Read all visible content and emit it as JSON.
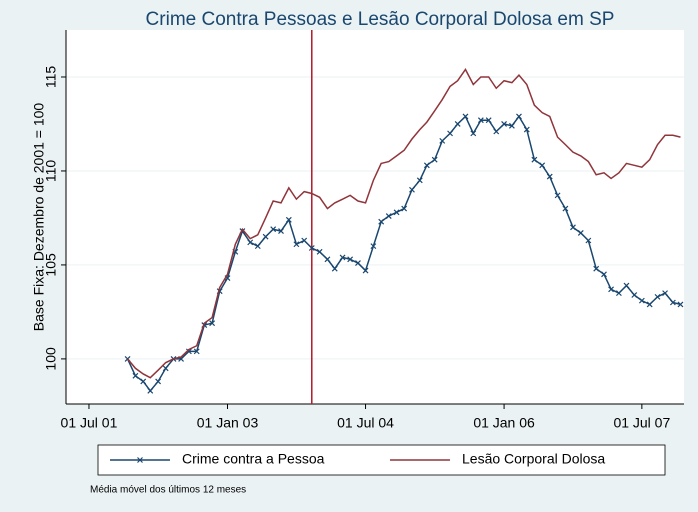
{
  "chart_data": {
    "type": "line",
    "title": "Crime Contra Pessoas e Lesão Corporal Dolosa em SP",
    "y_label": "Base Fixa: Dezembro de 2001 = 100",
    "note": "Média móvel dos últimos 12 meses",
    "x": [
      "2001-12-01",
      "2002-01-01",
      "2002-02-01",
      "2002-03-01",
      "2002-04-01",
      "2002-05-01",
      "2002-06-01",
      "2002-07-01",
      "2002-08-01",
      "2002-09-01",
      "2002-10-01",
      "2002-11-01",
      "2002-12-01",
      "2003-01-01",
      "2003-02-01",
      "2003-03-01",
      "2003-04-01",
      "2003-05-01",
      "2003-06-01",
      "2003-07-01",
      "2003-08-01",
      "2003-09-01",
      "2003-10-01",
      "2003-11-01",
      "2003-12-01",
      "2004-01-01",
      "2004-02-01",
      "2004-03-01",
      "2004-04-01",
      "2004-05-01",
      "2004-06-01",
      "2004-07-01",
      "2004-08-01",
      "2004-09-01",
      "2004-10-01",
      "2004-11-01",
      "2004-12-01",
      "2005-01-01",
      "2005-02-01",
      "2005-03-01",
      "2005-04-01",
      "2005-05-01",
      "2005-06-01",
      "2005-07-01",
      "2005-08-01",
      "2005-09-01",
      "2005-10-01",
      "2005-11-01",
      "2005-12-01",
      "2006-01-01",
      "2006-02-01",
      "2006-03-01",
      "2006-04-01",
      "2006-05-01",
      "2006-06-01",
      "2006-07-01",
      "2006-08-01",
      "2006-09-01",
      "2006-10-01",
      "2006-11-01",
      "2006-12-01",
      "2007-01-01",
      "2007-02-01",
      "2007-03-01",
      "2007-04-01",
      "2007-05-01",
      "2007-06-01",
      "2007-07-01",
      "2007-08-01",
      "2007-09-01",
      "2007-10-01",
      "2007-11-01",
      "2007-12-01"
    ],
    "series": [
      {
        "name": "Crime contra a Pessoa",
        "color": "#1a476f",
        "marker": "x",
        "values": [
          100.0,
          99.1,
          98.8,
          98.3,
          98.8,
          99.5,
          100.0,
          100.0,
          100.4,
          100.4,
          101.8,
          101.9,
          103.6,
          104.3,
          105.7,
          106.8,
          106.2,
          106.0,
          106.5,
          106.9,
          106.8,
          107.4,
          106.1,
          106.3,
          105.9,
          105.7,
          105.3,
          104.8,
          105.4,
          105.3,
          105.1,
          104.7,
          106.0,
          107.3,
          107.6,
          107.8,
          108.0,
          109.0,
          109.5,
          110.3,
          110.6,
          111.6,
          112.0,
          112.5,
          112.9,
          112.0,
          112.7,
          112.7,
          112.1,
          112.5,
          112.4,
          112.9,
          112.2,
          110.6,
          110.3,
          109.7,
          108.7,
          108.0,
          107.0,
          106.7,
          106.3,
          104.8,
          104.5,
          103.7,
          103.5,
          103.9,
          103.4,
          103.1,
          102.9,
          103.3,
          103.5,
          103.0,
          102.9
        ]
      },
      {
        "name": "Lesão Corporal Dolosa",
        "color": "#90353b",
        "values": [
          100.0,
          99.5,
          99.2,
          99.0,
          99.4,
          99.8,
          100.0,
          100.1,
          100.5,
          100.7,
          101.9,
          102.2,
          103.8,
          104.5,
          106.1,
          106.9,
          106.4,
          106.6,
          107.5,
          108.4,
          108.3,
          109.1,
          108.5,
          108.9,
          108.8,
          108.6,
          108.0,
          108.3,
          108.5,
          108.7,
          108.4,
          108.3,
          109.5,
          110.4,
          110.5,
          110.8,
          111.1,
          111.7,
          112.2,
          112.6,
          113.2,
          113.8,
          114.5,
          114.8,
          115.4,
          114.6,
          115.0,
          115.0,
          114.4,
          114.8,
          114.7,
          115.1,
          114.6,
          113.5,
          113.1,
          112.9,
          111.8,
          111.4,
          111.0,
          110.8,
          110.5,
          109.8,
          109.9,
          109.6,
          109.9,
          110.4,
          110.3,
          110.2,
          110.6,
          111.4,
          111.9,
          111.9,
          111.8
        ]
      }
    ],
    "xlim": [
      "2001-04-01",
      "2007-12-15"
    ],
    "xticks": [
      {
        "value": "2001-07-01",
        "label": "01 Jul 01"
      },
      {
        "value": "2003-01-01",
        "label": "01 Jan 03"
      },
      {
        "value": "2004-07-01",
        "label": "01 Jul 04"
      },
      {
        "value": "2006-01-01",
        "label": "01 Jan 06"
      },
      {
        "value": "2007-07-01",
        "label": "01 Jul 07"
      }
    ],
    "ylim": [
      97.6,
      117.5
    ],
    "yticks": [
      100,
      105,
      110,
      115
    ],
    "grid": true,
    "vline": {
      "x": "2003-12-01",
      "color": "#b0182a"
    },
    "legend": "bottom"
  }
}
